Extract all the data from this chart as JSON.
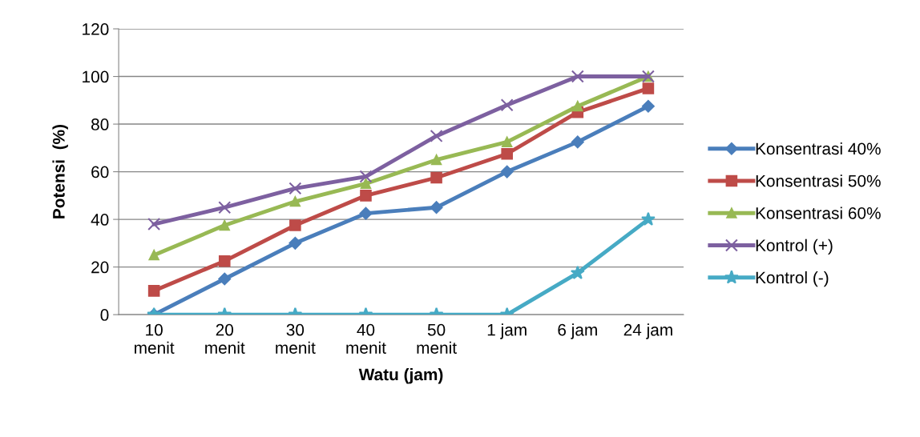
{
  "chart_data": {
    "type": "line",
    "xlabel": "Watu (jam)",
    "ylabel": "Potensi  (%)",
    "categories": [
      "10\nmenit",
      "20\nmenit",
      "30\nmenit",
      "40\nmenit",
      "50\nmenit",
      "1 jam",
      "6 jam",
      "24 jam"
    ],
    "series": [
      {
        "name": "Konsentrasi 40%",
        "color": "#4a7ebb",
        "marker": "diamond",
        "values": [
          0,
          15,
          30,
          42.5,
          45,
          60,
          72.5,
          87.5
        ]
      },
      {
        "name": "Konsentrasi 50%",
        "color": "#be4b48",
        "marker": "square",
        "values": [
          10,
          22.5,
          37.5,
          50,
          57.5,
          67.5,
          85,
          95
        ]
      },
      {
        "name": "Konsentrasi 60%",
        "color": "#98b954",
        "marker": "triangle",
        "values": [
          25,
          37.5,
          47.5,
          55,
          65,
          72.5,
          87.5,
          100
        ]
      },
      {
        "name": "Kontrol (+)",
        "color": "#7d60a0",
        "marker": "cross",
        "values": [
          38,
          45,
          53,
          58,
          75,
          88,
          100,
          100
        ]
      },
      {
        "name": "Kontrol (-)",
        "color": "#46aac5",
        "marker": "star",
        "values": [
          0,
          0,
          0,
          0,
          0,
          0,
          17.5,
          40
        ]
      }
    ],
    "ylim": [
      0,
      120
    ],
    "yticks": [
      0,
      20,
      40,
      60,
      80,
      100,
      120
    ],
    "grid": "y",
    "legend": "right",
    "line_style": "solid"
  }
}
